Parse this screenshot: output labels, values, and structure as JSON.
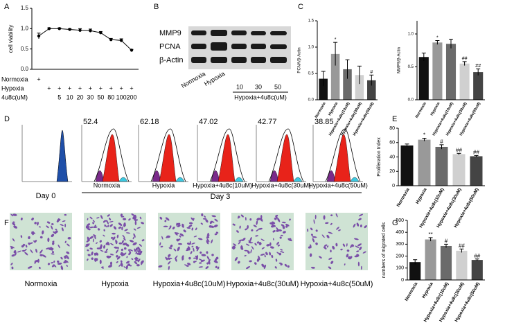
{
  "panel_labels": [
    "A",
    "B",
    "C",
    "D",
    "E",
    "F",
    "G"
  ],
  "chart_data": [
    {
      "type": "line",
      "ylabel": "cell viability",
      "categories": [
        null,
        null,
        null,
        null,
        null,
        null,
        null,
        null,
        null,
        null
      ],
      "values": [
        0.82,
        1.0,
        1.0,
        0.98,
        0.96,
        0.95,
        0.9,
        0.73,
        0.71,
        0.47
      ],
      "errors": [
        0.07,
        0.02,
        0.02,
        0.02,
        0.04,
        0.04,
        0.03,
        0.03,
        0.04,
        0.02
      ],
      "color": "#000000",
      "ylim": [
        0,
        1.5
      ],
      "yticks": [
        {
          "value": 0,
          "label": "0.0"
        },
        0.5,
        {
          "value": 1,
          "label": "1.0"
        },
        1.5
      ],
      "condition_rows": [
        {
          "label": "Normoxia",
          "cells": [
            "+",
            null,
            null,
            null,
            null,
            null,
            null,
            null,
            null,
            null
          ]
        },
        {
          "label": "Hypoxia",
          "cells": [
            null,
            "+",
            "+",
            "+",
            "+",
            "+",
            "+",
            "+",
            "+",
            "+"
          ]
        },
        {
          "label": "4u8c(uM)",
          "cells": [
            null,
            null,
            "5",
            "10",
            "20",
            "30",
            "50",
            "80",
            "100",
            "200"
          ]
        }
      ]
    },
    {
      "type": "bar",
      "ylabel": "PCNA/β-Actin",
      "categories": [
        "Normoxia",
        "Hypoxia",
        "Hypoxia+4u8c(10uM)",
        "Hypoxia+4u8c(30uM)",
        "Hypoxia+4u8c(50uM)"
      ],
      "values": [
        0.4,
        0.87,
        0.58,
        0.47,
        0.37
      ],
      "errors": [
        0.14,
        0.22,
        0.18,
        0.17,
        0.1
      ],
      "colors": [
        "#111111",
        "#999999",
        "#6a6a6a",
        "#d0d0d0",
        "#444444"
      ],
      "annotations": [
        null,
        "*",
        null,
        null,
        "#"
      ],
      "ylim": [
        0,
        1.5
      ],
      "yticks": [
        {
          "value": 0,
          "label": "0.0"
        },
        0.5,
        {
          "value": 1,
          "label": "1.0"
        },
        1.5
      ]
    },
    {
      "type": "bar",
      "ylabel": "MMP9/β-Actin",
      "categories": [
        "Normoxia",
        "Hypoxia",
        "Hypoxia+4u8c(10uM)",
        "Hypoxia+4u8c(30uM)",
        "Hypoxia+4u8c(50uM)"
      ],
      "values": [
        0.65,
        0.87,
        0.85,
        0.55,
        0.42
      ],
      "errors": [
        0.06,
        0.03,
        0.07,
        0.03,
        0.05
      ],
      "colors": [
        "#111111",
        "#999999",
        "#6a6a6a",
        "#d0d0d0",
        "#444444"
      ],
      "annotations": [
        null,
        "*",
        null,
        "##",
        "##"
      ],
      "ylim": [
        0,
        1.2
      ],
      "yticks": [
        {
          "value": 0,
          "label": "0.0"
        },
        0.5,
        {
          "value": 1,
          "label": "1.0"
        }
      ]
    },
    {
      "type": "bar",
      "ylabel": "Proliferation Index",
      "categories": [
        "Normoxia",
        "Hypoxia",
        "Hypoxia+4u8c(10uM)",
        "Hypoxia+4u8c(30uM)",
        "Hypoxia+4u8c(50uM)"
      ],
      "values": [
        56,
        64,
        54,
        44,
        41
      ],
      "errors": [
        2,
        2,
        3,
        1,
        1
      ],
      "colors": [
        "#111111",
        "#999999",
        "#6a6a6a",
        "#d0d0d0",
        "#444444"
      ],
      "annotations": [
        null,
        "*",
        "#",
        "##",
        "##"
      ],
      "ylim": [
        0,
        80
      ],
      "yticks": [
        0,
        20,
        40,
        60,
        80
      ]
    },
    {
      "type": "bar",
      "ylabel": "numbers of migrated cells",
      "categories": [
        "Normoxia",
        "Hypoxia",
        "Hypoxia+4u8c(10uM)",
        "Hypoxia+4u8c(30uM)",
        "Hypoxia+4u8c(50uM)"
      ],
      "values": [
        150,
        340,
        285,
        245,
        168
      ],
      "errors": [
        20,
        15,
        15,
        15,
        8
      ],
      "colors": [
        "#111111",
        "#999999",
        "#6a6a6a",
        "#d0d0d0",
        "#444444"
      ],
      "annotations": [
        null,
        "**",
        "#",
        "##",
        "##"
      ],
      "ylim": [
        0,
        500
      ],
      "yticks": [
        0,
        100,
        200,
        300,
        400,
        500
      ]
    }
  ],
  "blot": {
    "bands": [
      "MMP9",
      "PCNA",
      "β-Actin"
    ],
    "lanes": [
      "Normoxia",
      "Hypoxia",
      "10",
      "30",
      "50"
    ],
    "group_label": "Hypoxia+4u8c(uM)"
  },
  "flow": {
    "day0": "Day 0",
    "day3": "Day 3",
    "samples": [
      {
        "label": "Normoxia",
        "value": 52.4
      },
      {
        "label": "Hypoxia",
        "value": 62.18
      },
      {
        "label": "Hypoxia+4u8c(10uM)",
        "value": 47.02
      },
      {
        "label": "Hypoxia+4u8c(30uM)",
        "value": 42.77
      },
      {
        "label": "Hypoxia+4u8c(50uM)",
        "value": 38.85
      }
    ]
  },
  "migration": {
    "labels": [
      "Normoxia",
      "Hypoxia",
      "Hypoxia+4u8c(10uM)",
      "Hypoxia+4u8c(30uM)",
      "Hypoxia+4u8c(50uM)"
    ]
  }
}
